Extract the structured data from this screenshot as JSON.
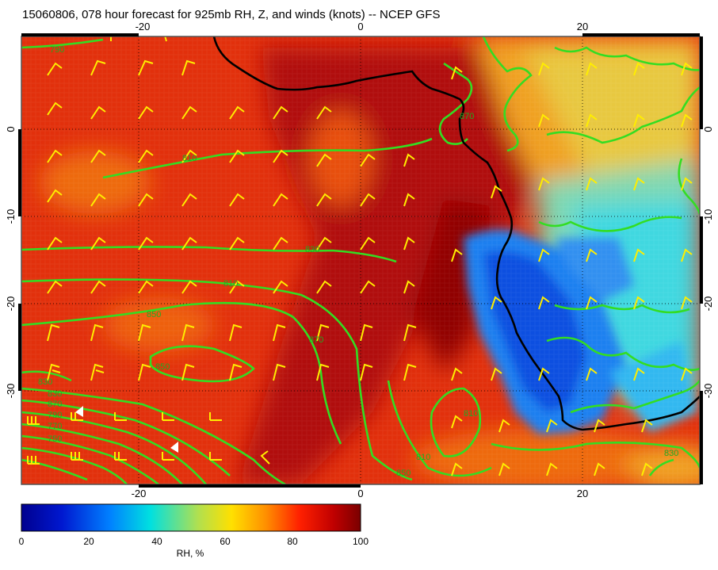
{
  "title": "15060806, 078 hour forecast for 925mb RH, Z, and winds (knots) -- NCEP GFS",
  "map": {
    "lon_ticks": [
      "-20",
      "0",
      "20"
    ],
    "lat_ticks": [
      "0",
      "-10",
      "-20",
      "-30"
    ],
    "contour_labels": [
      "790",
      "810",
      "830",
      "850",
      "870",
      "810",
      "850",
      "830",
      "790",
      "850",
      "870",
      "830",
      "750",
      "770",
      "810",
      "810",
      "830",
      "870"
    ],
    "colors": {
      "coastline": "#000000",
      "contours": "#33dd22",
      "barbs": "#ffee00",
      "frame": "#555555"
    }
  },
  "colorbar": {
    "ticks": [
      "0",
      "20",
      "40",
      "60",
      "80",
      "100"
    ],
    "label": "RH, %",
    "colors": [
      "#00008f",
      "#0050ff",
      "#00c8ff",
      "#c8e040",
      "#ffb000",
      "#ff3000",
      "#a00000",
      "#800000"
    ]
  }
}
